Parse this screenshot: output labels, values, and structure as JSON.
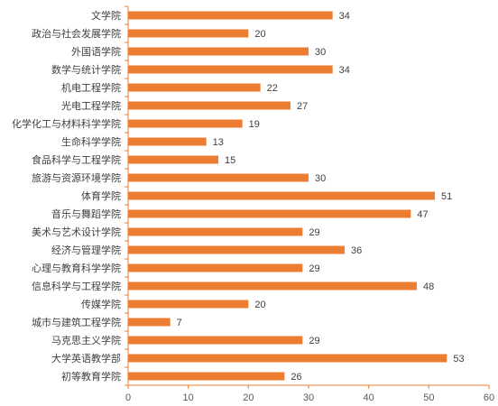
{
  "chart_data": {
    "type": "bar",
    "orientation": "horizontal",
    "categories": [
      "文学院",
      "政治与社会发展学院",
      "外国语学院",
      "数学与统计学院",
      "机电工程学院",
      "光电工程学院",
      "化学化工与材料科学学院",
      "生命科学学院",
      "食品科学与工程学院",
      "旅游与资源环境学院",
      "体育学院",
      "音乐与舞蹈学院",
      "美术与艺术设计学院",
      "经济与管理学院",
      "心理与教育科学学院",
      "信息科学与工程学院",
      "传媒学院",
      "城市与建筑工程学院",
      "马克思主义学院",
      "大学英语教学部",
      "初等教育学院"
    ],
    "values": [
      34,
      20,
      30,
      34,
      22,
      27,
      19,
      13,
      15,
      30,
      51,
      47,
      29,
      36,
      29,
      48,
      20,
      7,
      29,
      53,
      26
    ],
    "xlim": [
      0,
      60
    ],
    "xticks": [
      0,
      10,
      20,
      30,
      40,
      50,
      60
    ],
    "bar_color": "#ED7D31",
    "axis_color": "#ED7D31",
    "data_labels": true,
    "grid": false,
    "title": "",
    "xlabel": "",
    "ylabel": ""
  }
}
